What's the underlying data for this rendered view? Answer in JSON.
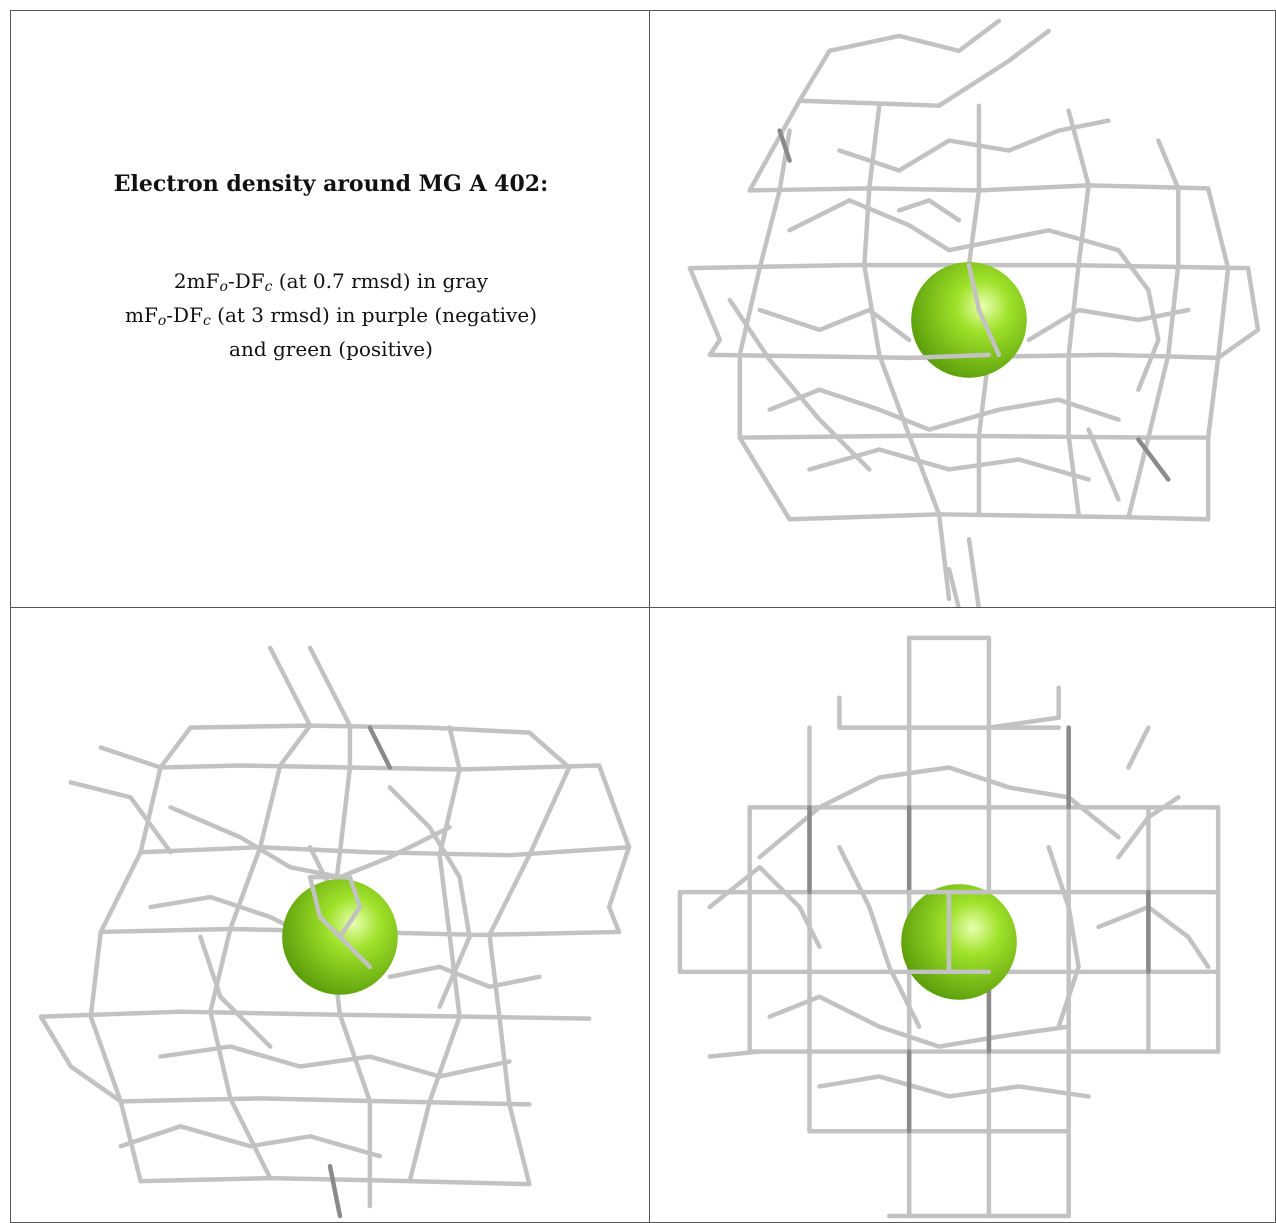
{
  "legend": {
    "title": "Electron density around MG A 402:",
    "line1": {
      "prefix": "2mF",
      "sub1": "o",
      "mid": "-DF",
      "sub2": "c",
      "suffix": " (at 0.7 rmsd) in gray"
    },
    "line2": {
      "prefix": "mF",
      "sub1": "o",
      "mid": "-DF",
      "sub2": "c",
      "suffix": " (at 3 rmsd) in purple (negative)"
    },
    "line3": "and green (positive)"
  },
  "colors": {
    "mesh": "#c2c2c2",
    "mesh_dark": "#8a8a8a",
    "ion_light": "#eaffb0",
    "ion_mid": "#9fe22a",
    "ion_dark": "#5ea00c"
  },
  "views": [
    {
      "name": "view-top-right",
      "content": "mesh-with-ion"
    },
    {
      "name": "view-bottom-left",
      "content": "mesh-with-ion"
    },
    {
      "name": "view-bottom-right",
      "content": "mesh-with-ion"
    }
  ]
}
